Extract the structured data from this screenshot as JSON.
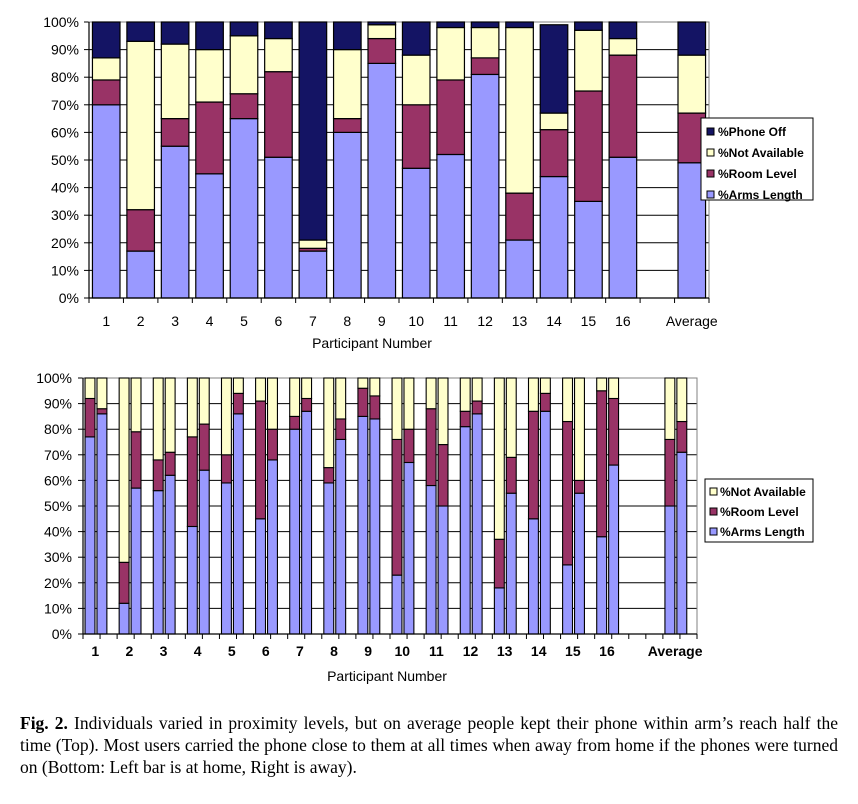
{
  "chart_data": [
    {
      "type": "bar",
      "stacked": true,
      "title": "",
      "xlabel": "Participant Number",
      "ylabel": "",
      "ylim": [
        0,
        100
      ],
      "yticks": [
        "0%",
        "10%",
        "20%",
        "30%",
        "40%",
        "50%",
        "60%",
        "70%",
        "80%",
        "90%",
        "100%"
      ],
      "grid": true,
      "legend_position": "right",
      "categories": [
        "1",
        "2",
        "3",
        "4",
        "5",
        "6",
        "7",
        "8",
        "9",
        "10",
        "11",
        "12",
        "13",
        "14",
        "15",
        "16",
        "",
        "Average"
      ],
      "series": [
        {
          "name": "%Arms Length",
          "color": "#9999ff",
          "values": [
            70,
            17,
            55,
            45,
            65,
            51,
            17,
            60,
            85,
            47,
            52,
            81,
            21,
            44,
            35,
            51,
            null,
            49
          ]
        },
        {
          "name": "%Room Level",
          "color": "#993366",
          "values": [
            9,
            15,
            10,
            26,
            9,
            31,
            1,
            5,
            9,
            23,
            27,
            6,
            17,
            17,
            40,
            37,
            null,
            18
          ]
        },
        {
          "name": "%Not Available",
          "color": "#ffffcc",
          "values": [
            8,
            61,
            27,
            19,
            21,
            12,
            3,
            25,
            5,
            18,
            19,
            11,
            60,
            6,
            22,
            6,
            null,
            21
          ]
        },
        {
          "name": "%Phone Off",
          "color": "#141464",
          "values": [
            13,
            7,
            8,
            10,
            5,
            6,
            79,
            10,
            1,
            12,
            2,
            2,
            2,
            32,
            3,
            6,
            null,
            12
          ]
        }
      ],
      "legend": [
        "%Phone Off",
        "%Not Available",
        "%Room Level",
        "%Arms Length"
      ]
    },
    {
      "type": "bar",
      "stacked": true,
      "grouped_pairs": true,
      "pair_labels": [
        "Home",
        "Away"
      ],
      "title": "",
      "xlabel": "Participant Number",
      "ylabel": "",
      "ylim": [
        0,
        100
      ],
      "yticks": [
        "0%",
        "10%",
        "20%",
        "30%",
        "40%",
        "50%",
        "60%",
        "70%",
        "80%",
        "90%",
        "100%"
      ],
      "grid": true,
      "legend_position": "right",
      "categories": [
        "1",
        "2",
        "3",
        "4",
        "5",
        "6",
        "7",
        "8",
        "9",
        "10",
        "11",
        "12",
        "13",
        "14",
        "15",
        "16",
        "",
        "Average"
      ],
      "series": [
        {
          "name": "%Arms Length",
          "color": "#9999ff",
          "home": [
            77,
            12,
            56,
            42,
            59,
            45,
            80,
            59,
            85,
            23,
            58,
            81,
            18,
            45,
            27,
            38,
            null,
            50
          ],
          "away": [
            86,
            57,
            62,
            64,
            86,
            68,
            87,
            76,
            84,
            67,
            50,
            86,
            55,
            87,
            55,
            66,
            null,
            71
          ]
        },
        {
          "name": "%Room Level",
          "color": "#993366",
          "home": [
            15,
            16,
            12,
            35,
            11,
            46,
            5,
            6,
            11,
            53,
            30,
            6,
            19,
            42,
            56,
            57,
            null,
            26
          ],
          "away": [
            2,
            22,
            9,
            18,
            8,
            12,
            5,
            8,
            9,
            13,
            24,
            5,
            14,
            7,
            5,
            26,
            null,
            12
          ]
        },
        {
          "name": "%Not Available",
          "color": "#ffffcc",
          "home": [
            8,
            72,
            32,
            23,
            30,
            9,
            15,
            35,
            4,
            24,
            12,
            13,
            63,
            13,
            17,
            5,
            null,
            24
          ],
          "away": [
            12,
            21,
            29,
            18,
            6,
            20,
            8,
            16,
            7,
            20,
            26,
            9,
            31,
            6,
            40,
            8,
            null,
            17
          ]
        }
      ],
      "legend": [
        "%Not Available",
        "%Room Level",
        "%Arms Length"
      ]
    }
  ],
  "caption": {
    "label": "Fig. 2.",
    "text": "Individuals varied in proximity levels, but on average people kept their phone within arm’s reach half the time (Top). Most users carried the phone close to them at all times when away from home if the phones were turned on (Bottom: Left bar is at home, Right is away)."
  }
}
